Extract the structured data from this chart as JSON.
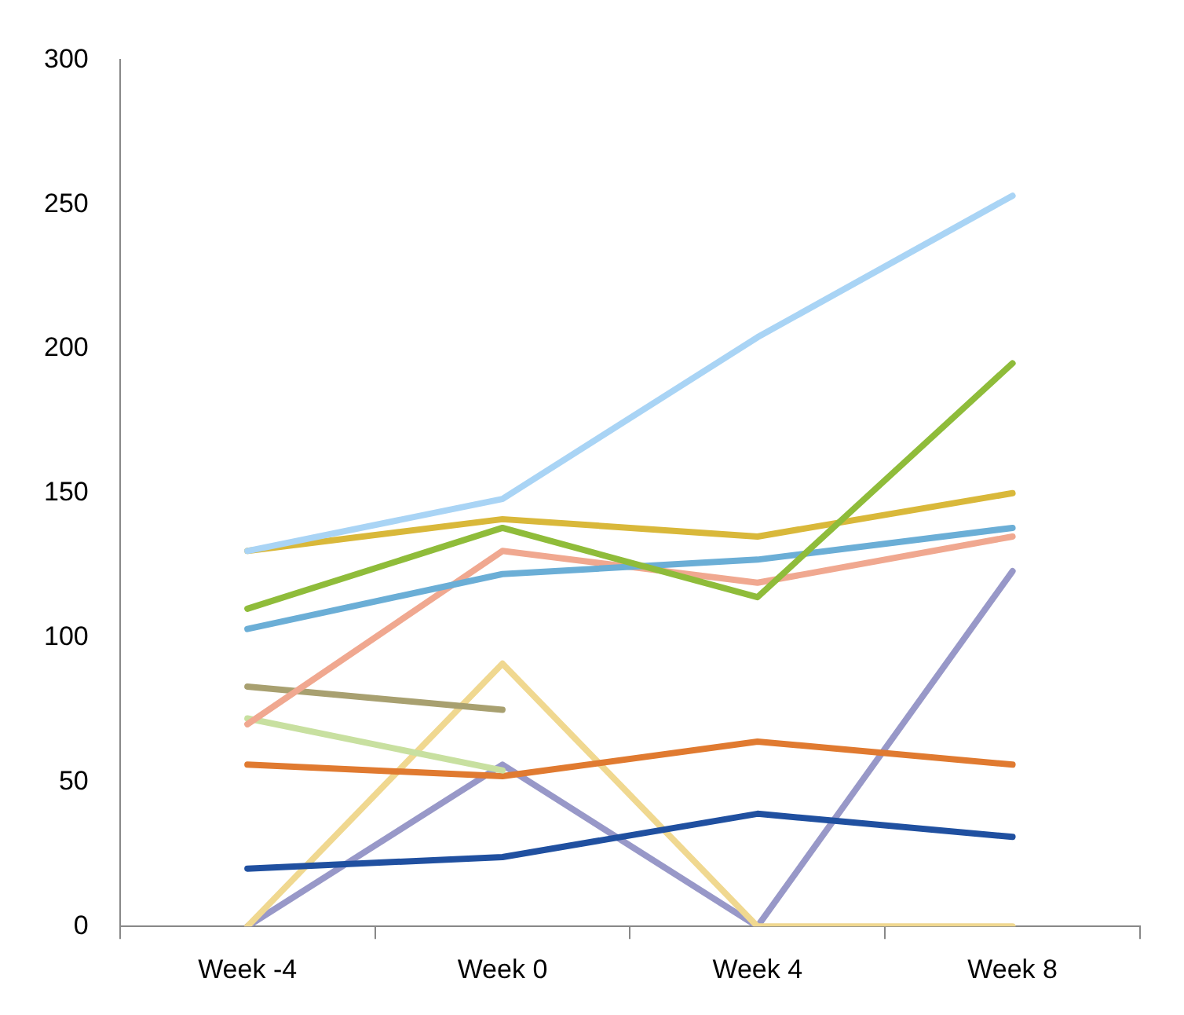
{
  "chart_data": {
    "type": "line",
    "categories": [
      "Week -4",
      "Week 0",
      "Week 4",
      "Week 8"
    ],
    "series": [
      {
        "color": "#a9d4f5",
        "values": [
          130,
          148,
          204,
          253
        ]
      },
      {
        "color": "#8fbc3a",
        "values": [
          110,
          138,
          114,
          195
        ]
      },
      {
        "color": "#d9b83a",
        "values": [
          130,
          141,
          135,
          150
        ]
      },
      {
        "color": "#6baed6",
        "values": [
          103,
          122,
          127,
          138
        ]
      },
      {
        "color": "#f0a890",
        "values": [
          70,
          130,
          119,
          135
        ]
      },
      {
        "color": "#a8a070",
        "values": [
          83,
          75,
          null,
          null
        ]
      },
      {
        "color": "#c8e0a0",
        "values": [
          72,
          54,
          null,
          null
        ]
      },
      {
        "color": "#e07a30",
        "values": [
          56,
          52,
          64,
          56
        ]
      },
      {
        "color": "#2050a0",
        "values": [
          20,
          24,
          39,
          31
        ]
      },
      {
        "color": "#f0d890",
        "values": [
          0,
          91,
          0,
          0
        ]
      },
      {
        "color": "#9898c8",
        "values": [
          0,
          56,
          0,
          123
        ]
      }
    ],
    "ylim": [
      0,
      300
    ],
    "yticks": [
      0,
      50,
      100,
      150,
      200,
      250,
      300
    ],
    "grid": false,
    "legend": false,
    "marker": "none",
    "line_style": "solid"
  }
}
